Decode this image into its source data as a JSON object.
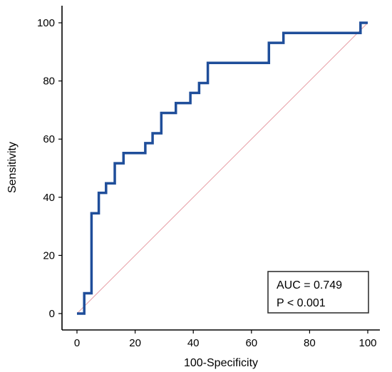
{
  "chart_data": {
    "type": "line",
    "xlabel": "100-Specificity",
    "ylabel": "Sensitivity",
    "xlim": [
      0,
      100
    ],
    "ylim": [
      0,
      100
    ],
    "xticks": [
      "0",
      "20",
      "40",
      "60",
      "80",
      "100"
    ],
    "yticks": [
      "0",
      "20",
      "40",
      "60",
      "80",
      "100"
    ],
    "grid": false,
    "colors": {
      "roc": "#1f4e9a",
      "reference": "#e8a0a8"
    },
    "series": [
      {
        "x": [
          0,
          2.5,
          2.5,
          5,
          5,
          7.5,
          7.5,
          10,
          10,
          13,
          13,
          16,
          16,
          23.5,
          23.5,
          26,
          26,
          29,
          29,
          34,
          34,
          39,
          39,
          42,
          42,
          45,
          45,
          66,
          66,
          71,
          71,
          97.5,
          97.5,
          100
        ],
        "y": [
          0,
          0,
          7,
          7,
          34.5,
          34.5,
          41.5,
          41.5,
          44.8,
          44.8,
          51.7,
          51.7,
          55.2,
          55.2,
          58.6,
          58.6,
          62,
          62,
          69,
          69,
          72.4,
          72.4,
          75.9,
          75.9,
          79.3,
          79.3,
          86.2,
          86.2,
          93.1,
          93.1,
          96.5,
          96.5,
          100,
          100
        ]
      },
      {
        "x": [
          0,
          100
        ],
        "y": [
          0,
          100
        ]
      }
    ],
    "annotations": [
      "AUC = 0.749",
      "P < 0.001"
    ]
  }
}
